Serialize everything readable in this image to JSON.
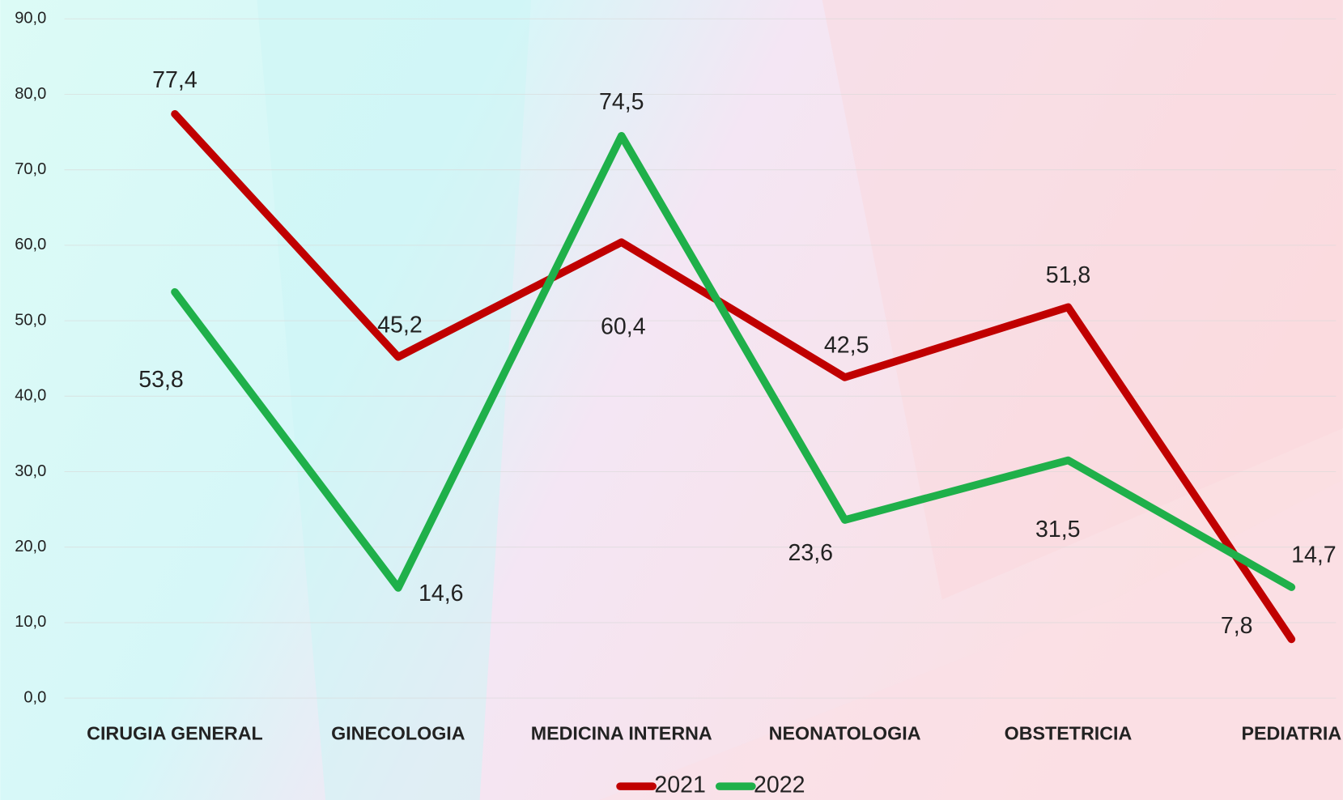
{
  "chart_data": {
    "type": "line",
    "categories": [
      "CIRUGIA GENERAL",
      "GINECOLOGIA",
      "MEDICINA INTERNA",
      "NEONATOLOGIA",
      "OBSTETRICIA",
      "PEDIATRIA"
    ],
    "series": [
      {
        "name": "2021",
        "color": "#c00000",
        "values": [
          77.4,
          45.2,
          60.4,
          42.5,
          51.8,
          7.8
        ],
        "value_labels": [
          "77,4",
          "45,2",
          "60,4",
          "42,5",
          "51,8",
          "7,8"
        ]
      },
      {
        "name": "2022",
        "color": "#1fb04a",
        "values": [
          53.8,
          14.6,
          74.5,
          23.6,
          31.5,
          14.7
        ],
        "value_labels": [
          "53,8",
          "14,6",
          "74,5",
          "23,6",
          "31,5",
          "14,7"
        ]
      }
    ],
    "ylim": [
      0,
      90
    ],
    "yticks": [
      {
        "value": 0,
        "label": "0,0"
      },
      {
        "value": 10,
        "label": "10,0"
      },
      {
        "value": 20,
        "label": "20,0"
      },
      {
        "value": 30,
        "label": "30,0"
      },
      {
        "value": 40,
        "label": "40,0"
      },
      {
        "value": 50,
        "label": "50,0"
      },
      {
        "value": 60,
        "label": "60,0"
      },
      {
        "value": 70,
        "label": "70,0"
      },
      {
        "value": 80,
        "label": "80,0"
      },
      {
        "value": 90,
        "label": "90,0"
      }
    ],
    "grid": true,
    "legend": "bottom"
  }
}
